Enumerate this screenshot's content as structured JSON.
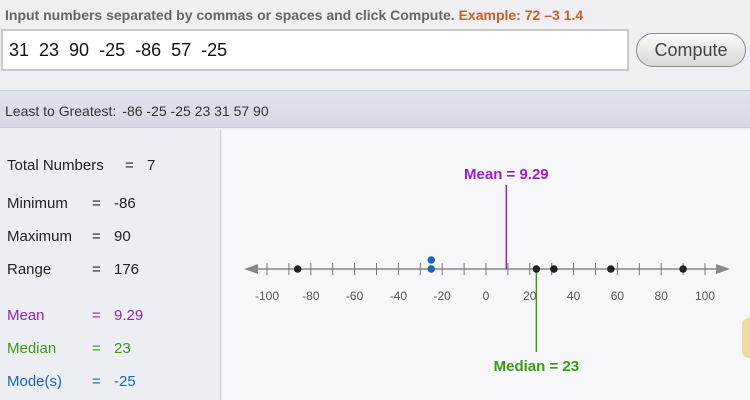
{
  "instructions": {
    "text": "Input numbers separated by commas or spaces and click Compute.",
    "example": "Example: 72 –3  1.4"
  },
  "input": {
    "value": "31  23  90  -25  -86  57  -25"
  },
  "compute_label": "Compute",
  "sorted": {
    "label": "Least to Greatest:",
    "values": "-86  -25  -25  23  31  57  90"
  },
  "stats": {
    "total": {
      "label": "Total Numbers",
      "eq": "=",
      "value": "7"
    },
    "minimum": {
      "label": "Minimum",
      "eq": "=",
      "value": "-86"
    },
    "maximum": {
      "label": "Maximum",
      "eq": "=",
      "value": "90"
    },
    "range": {
      "label": "Range",
      "eq": "=",
      "value": "176"
    },
    "mean": {
      "label": "Mean",
      "eq": "=",
      "value": "9.29"
    },
    "median": {
      "label": "Median",
      "eq": "=",
      "value": "23"
    },
    "mode": {
      "label": "Mode(s)",
      "eq": "=",
      "value": "-25"
    }
  },
  "number_line": {
    "min": -100,
    "max": 100,
    "major_step": 20,
    "minor_step": 10,
    "ticks": [
      -100,
      -80,
      -60,
      -40,
      -20,
      0,
      20,
      40,
      60,
      80,
      100
    ],
    "points": [
      -86,
      -25,
      -25,
      23,
      31,
      57,
      90
    ],
    "mean": 9.29,
    "mean_label": "Mean = 9.29",
    "median": 23,
    "median_label": "Median = 23",
    "mode": -25
  },
  "colors": {
    "mean": "#9b1ec8",
    "median": "#3c9a12",
    "mode": "#1766bd",
    "point": "#222222",
    "example": "#c8602a"
  }
}
